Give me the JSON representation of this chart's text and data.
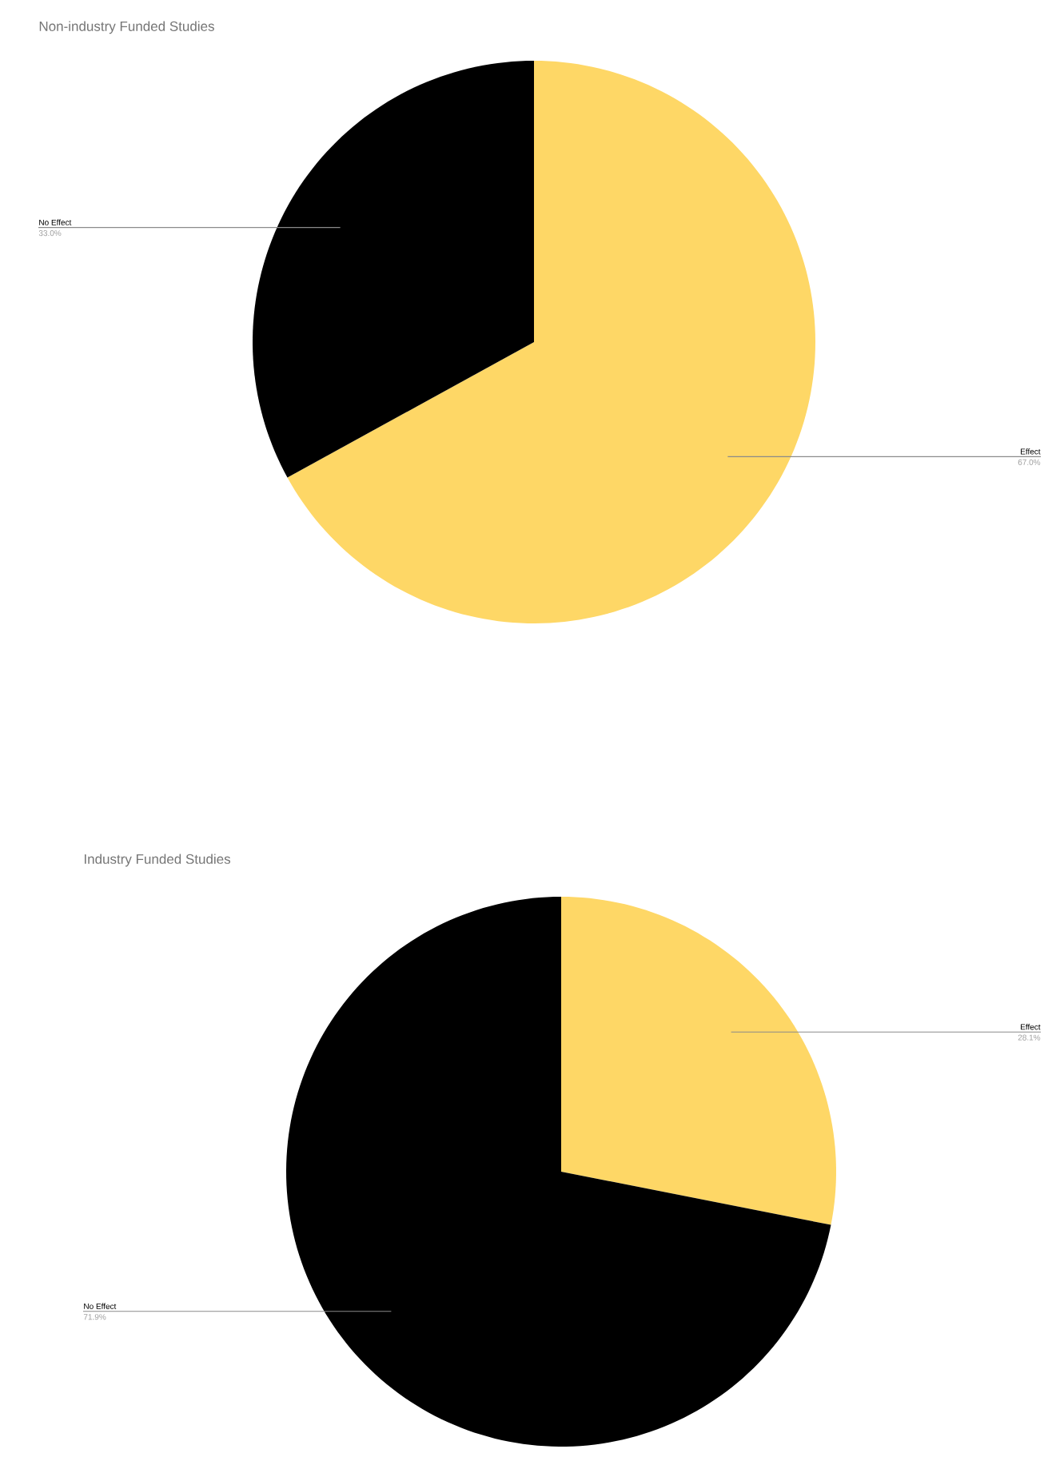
{
  "chart_data": [
    {
      "type": "pie",
      "title": "Non-industry Funded Studies",
      "categories": [
        "Effect",
        "No Effect"
      ],
      "values": [
        67.0,
        33.0
      ],
      "colors": [
        "#fed766",
        "#000000"
      ],
      "value_labels": [
        "67.0%",
        "33.0%"
      ]
    },
    {
      "type": "pie",
      "title": "Industry Funded Studies",
      "categories": [
        "Effect",
        "No Effect"
      ],
      "values": [
        28.1,
        71.9
      ],
      "colors": [
        "#fed766",
        "#000000"
      ],
      "value_labels": [
        "28.1%",
        "71.9%"
      ]
    }
  ]
}
